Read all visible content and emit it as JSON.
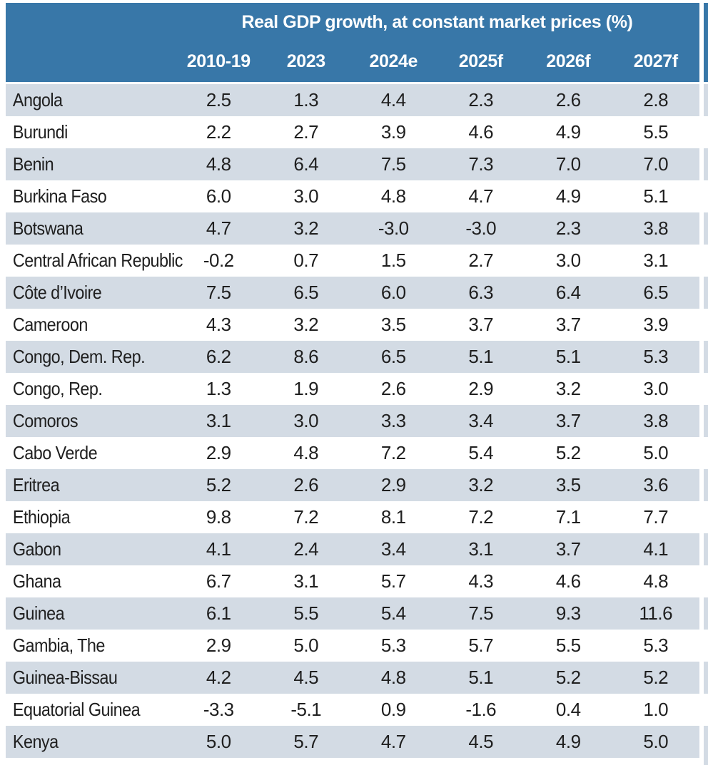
{
  "colors": {
    "header_blue": "#3877a8",
    "stripe": "#d3dbe4",
    "text_dark": "#1f1f1f",
    "header_text": "#ffffff",
    "page_bg": "#ffffff"
  },
  "chart_data": {
    "type": "table",
    "title": "Real GDP growth, at constant market prices (%)",
    "row_label_header": "",
    "columns": [
      "2010-19",
      "2023",
      "2024e",
      "2025f",
      "2026f",
      "2027f"
    ],
    "rows": [
      {
        "label": "Angola",
        "values": [
          2.5,
          1.3,
          4.4,
          2.3,
          2.6,
          2.8
        ]
      },
      {
        "label": "Burundi",
        "values": [
          2.2,
          2.7,
          3.9,
          4.6,
          4.9,
          5.5
        ]
      },
      {
        "label": "Benin",
        "values": [
          4.8,
          6.4,
          7.5,
          7.3,
          7.0,
          7.0
        ]
      },
      {
        "label": "Burkina Faso",
        "values": [
          6.0,
          3.0,
          4.8,
          4.7,
          4.9,
          5.1
        ]
      },
      {
        "label": "Botswana",
        "values": [
          4.7,
          3.2,
          -3.0,
          -3.0,
          2.3,
          3.8
        ]
      },
      {
        "label": "Central African Republic",
        "values": [
          -0.2,
          0.7,
          1.5,
          2.7,
          3.0,
          3.1
        ]
      },
      {
        "label": "Côte d’Ivoire",
        "values": [
          7.5,
          6.5,
          6.0,
          6.3,
          6.4,
          6.5
        ]
      },
      {
        "label": "Cameroon",
        "values": [
          4.3,
          3.2,
          3.5,
          3.7,
          3.7,
          3.9
        ]
      },
      {
        "label": "Congo, Dem. Rep.",
        "values": [
          6.2,
          8.6,
          6.5,
          5.1,
          5.1,
          5.3
        ]
      },
      {
        "label": "Congo, Rep.",
        "values": [
          1.3,
          1.9,
          2.6,
          2.9,
          3.2,
          3.0
        ]
      },
      {
        "label": "Comoros",
        "values": [
          3.1,
          3.0,
          3.3,
          3.4,
          3.7,
          3.8
        ]
      },
      {
        "label": "Cabo Verde",
        "values": [
          2.9,
          4.8,
          7.2,
          5.4,
          5.2,
          5.0
        ]
      },
      {
        "label": "Eritrea",
        "values": [
          5.2,
          2.6,
          2.9,
          3.2,
          3.5,
          3.6
        ]
      },
      {
        "label": "Ethiopia",
        "values": [
          9.8,
          7.2,
          8.1,
          7.2,
          7.1,
          7.7
        ]
      },
      {
        "label": "Gabon",
        "values": [
          4.1,
          2.4,
          3.4,
          3.1,
          3.7,
          4.1
        ]
      },
      {
        "label": "Ghana",
        "values": [
          6.7,
          3.1,
          5.7,
          4.3,
          4.6,
          4.8
        ]
      },
      {
        "label": "Guinea",
        "values": [
          6.1,
          5.5,
          5.4,
          7.5,
          9.3,
          11.6
        ]
      },
      {
        "label": "Gambia, The",
        "values": [
          2.9,
          5.0,
          5.3,
          5.7,
          5.5,
          5.3
        ]
      },
      {
        "label": "Guinea-Bissau",
        "values": [
          4.2,
          4.5,
          4.8,
          5.1,
          5.2,
          5.2
        ]
      },
      {
        "label": "Equatorial Guinea",
        "values": [
          -3.3,
          -5.1,
          0.9,
          -1.6,
          0.4,
          1.0
        ]
      },
      {
        "label": "Kenya",
        "values": [
          5.0,
          5.7,
          4.7,
          4.5,
          4.9,
          5.0
        ]
      }
    ],
    "layout": {
      "value_format": "one-decimal",
      "stripes": "alternating, first data row shaded",
      "header_style": "blue band, white bold text, title centered over value columns",
      "adjacent_table_sliver": "right edge shows edge of neighboring table with matching stripes"
    }
  }
}
